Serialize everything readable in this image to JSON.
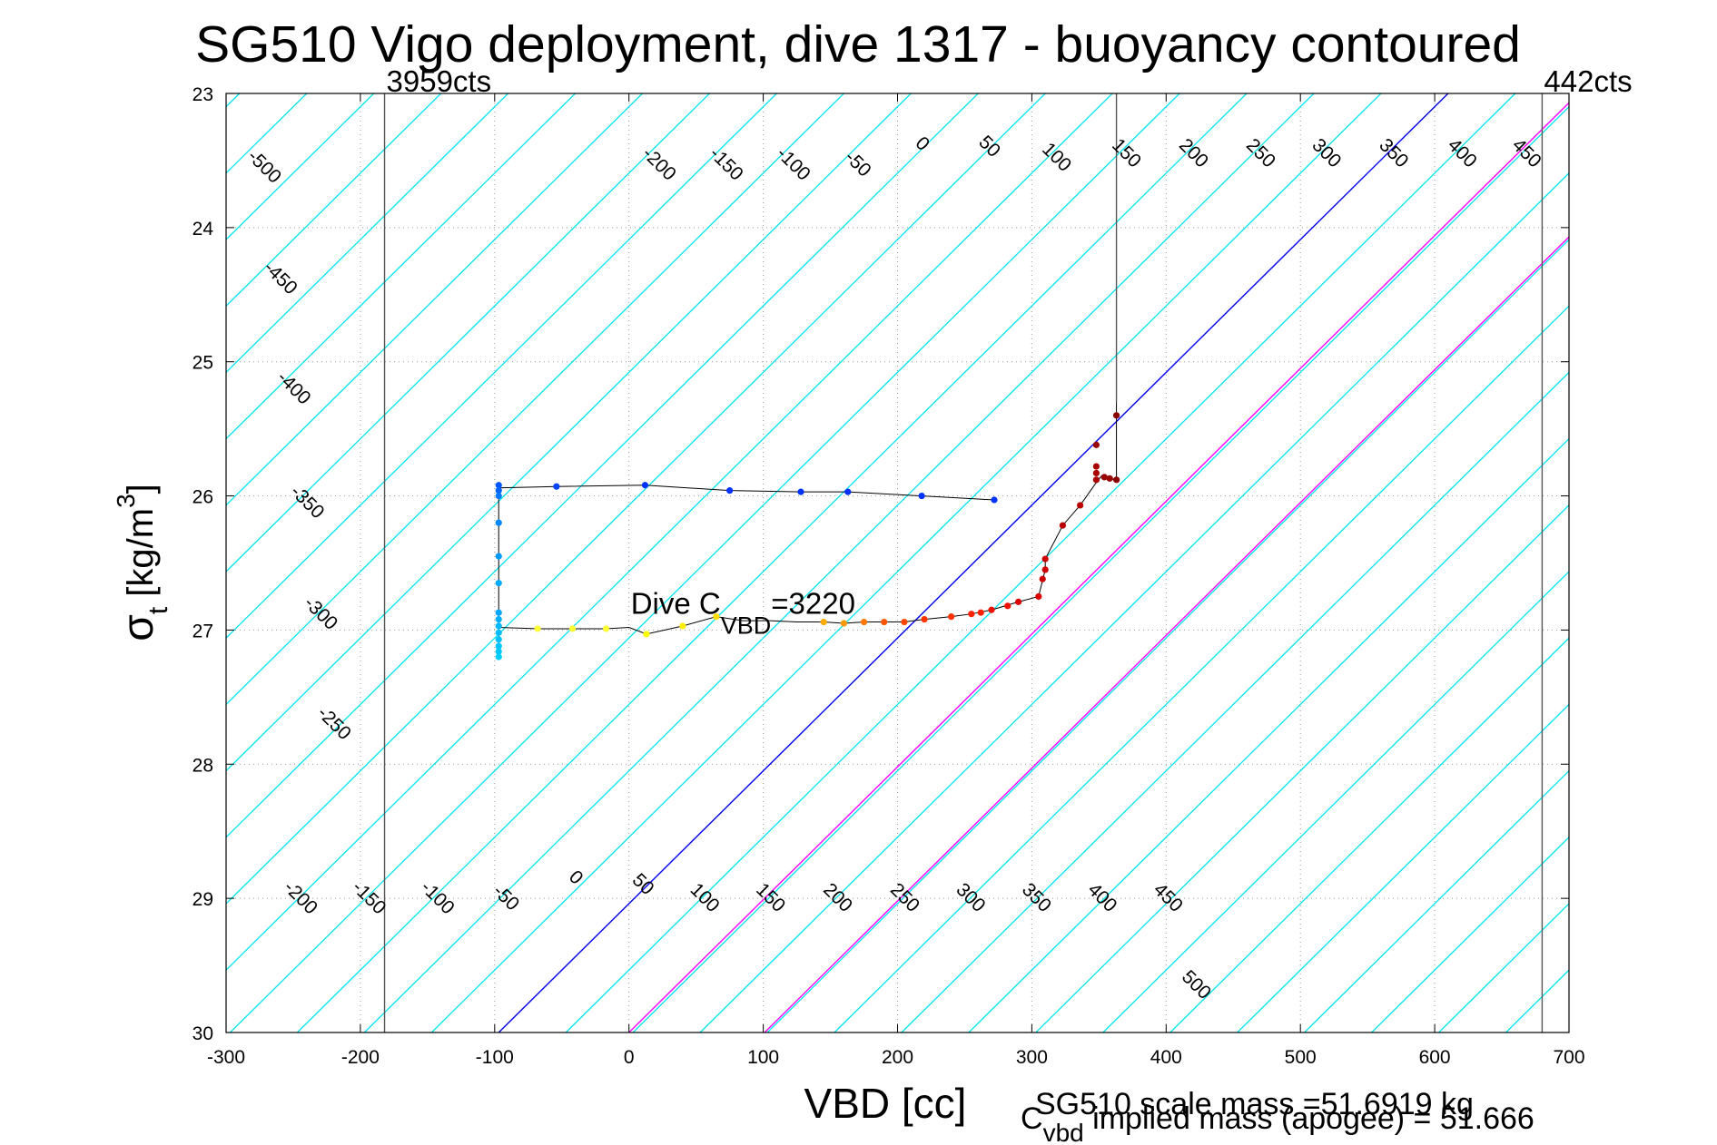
{
  "chart_data": {
    "type": "scatter",
    "title": "SG510 Vigo deployment, dive 1317 - buoyancy contoured",
    "xlabel": "VBD [cc]",
    "ylabel": {
      "symbol": "σ",
      "subscript": "t",
      "unit_open": " [kg/m",
      "superscript": "3",
      "unit_close": "]"
    },
    "xlim": [
      -300,
      700
    ],
    "ylim": [
      30,
      23
    ],
    "y_reversed": true,
    "x_ticks": [
      -300,
      -200,
      -100,
      0,
      100,
      200,
      300,
      400,
      500,
      600,
      700
    ],
    "y_ticks": [
      23,
      24,
      25,
      26,
      27,
      28,
      29,
      30
    ],
    "grid": "dotted",
    "count_limits": [
      {
        "vbd": -182,
        "label": "3959cts"
      },
      {
        "vbd": 680,
        "label": "442cts"
      }
    ],
    "apogee_line_vbd": 363,
    "contour_slope_vbd_per_sigma": 101,
    "contour_levels": [
      -500,
      -450,
      -400,
      -350,
      -300,
      -250,
      -200,
      -150,
      -100,
      -50,
      0,
      50,
      100,
      150,
      200,
      250,
      300,
      350,
      400,
      450,
      500
    ],
    "zero_contour_anchor": {
      "vbd": -97,
      "sigma": 30
    },
    "top_labels": [
      {
        "level": -500,
        "vbd": -272,
        "sigma": 23.55
      },
      {
        "level": -450,
        "vbd": -260,
        "sigma": 24.38
      },
      {
        "level": -400,
        "vbd": -250,
        "sigma": 25.2
      },
      {
        "level": -350,
        "vbd": -240,
        "sigma": 26.05
      },
      {
        "level": -300,
        "vbd": -230,
        "sigma": 26.88
      },
      {
        "level": -250,
        "vbd": -220,
        "sigma": 27.7
      },
      {
        "level": -200,
        "vbd": 22,
        "sigma": 23.53
      },
      {
        "level": -150,
        "vbd": 72,
        "sigma": 23.53
      },
      {
        "level": -100,
        "vbd": 122,
        "sigma": 23.53
      },
      {
        "level": -50,
        "vbd": 170,
        "sigma": 23.53
      },
      {
        "level": 0,
        "vbd": 218,
        "sigma": 23.38
      },
      {
        "level": 50,
        "vbd": 268,
        "sigma": 23.4
      },
      {
        "level": 100,
        "vbd": 318,
        "sigma": 23.48
      },
      {
        "level": 150,
        "vbd": 370,
        "sigma": 23.45
      },
      {
        "level": 200,
        "vbd": 420,
        "sigma": 23.45
      },
      {
        "level": 250,
        "vbd": 470,
        "sigma": 23.45
      },
      {
        "level": 300,
        "vbd": 519,
        "sigma": 23.45
      },
      {
        "level": 350,
        "vbd": 569,
        "sigma": 23.45
      },
      {
        "level": 400,
        "vbd": 620,
        "sigma": 23.45
      },
      {
        "level": 450,
        "vbd": 668,
        "sigma": 23.45
      }
    ],
    "bottom_labels": [
      {
        "level": -200,
        "vbd": -245,
        "sigma": 29.0
      },
      {
        "level": -150,
        "vbd": -194,
        "sigma": 29.0
      },
      {
        "level": -100,
        "vbd": -143,
        "sigma": 29.0
      },
      {
        "level": -50,
        "vbd": -92,
        "sigma": 29.0
      },
      {
        "level": 0,
        "vbd": -40,
        "sigma": 28.85
      },
      {
        "level": 50,
        "vbd": 10,
        "sigma": 28.9
      },
      {
        "level": 100,
        "vbd": 56,
        "sigma": 29.0
      },
      {
        "level": 150,
        "vbd": 105,
        "sigma": 29.0
      },
      {
        "level": 200,
        "vbd": 155,
        "sigma": 29.0
      },
      {
        "level": 250,
        "vbd": 205,
        "sigma": 29.0
      },
      {
        "level": 300,
        "vbd": 254,
        "sigma": 29.0
      },
      {
        "level": 350,
        "vbd": 303,
        "sigma": 29.0
      },
      {
        "level": 400,
        "vbd": 352,
        "sigma": 29.0
      },
      {
        "level": 450,
        "vbd": 401,
        "sigma": 29.0
      },
      {
        "level": 500,
        "vbd": 422,
        "sigma": 29.65
      }
    ],
    "annotation": {
      "text": "Dive C",
      "subscript": "VBD",
      "suffix": "=3220",
      "vbd": 0,
      "sigma": 26.85
    },
    "footer_mass": "SG510 scale mass =51.6919 kg",
    "footer_implied": {
      "symbol": "C",
      "subscript": "vbd",
      "text": " implied mass (apogee) = 51.666"
    },
    "colors": {
      "contour": "#00e5ee",
      "zero": "#0000ee",
      "magenta": "#ff00ff",
      "grey_line": "#555555",
      "path": "#000000"
    },
    "magenta_lines": [
      {
        "vbd_at_30": 0,
        "vbd_at_23": 707
      },
      {
        "vbd_at_30": 101,
        "vbd_at_23": 808
      }
    ],
    "descent_path": [
      [
        272,
        26.03
      ],
      [
        218,
        26.0
      ],
      [
        163,
        25.97
      ],
      [
        128,
        25.97
      ],
      [
        75,
        25.96
      ],
      [
        12,
        25.92
      ],
      [
        -54,
        25.93
      ],
      [
        -97,
        25.94
      ],
      [
        -97,
        26.0
      ],
      [
        -97,
        26.2
      ],
      [
        -97,
        26.5
      ],
      [
        -97,
        26.7
      ],
      [
        -97,
        26.9
      ],
      [
        -97,
        27.1
      ],
      [
        -97,
        27.2
      ]
    ],
    "ascent_path": [
      [
        -97,
        26.98
      ],
      [
        -68,
        26.99
      ],
      [
        -42,
        26.99
      ],
      [
        -17,
        26.99
      ],
      [
        0,
        26.98
      ],
      [
        13,
        27.03
      ],
      [
        40,
        26.97
      ],
      [
        65,
        26.9
      ],
      [
        85,
        26.93
      ],
      [
        105,
        26.93
      ],
      [
        125,
        26.94
      ],
      [
        145,
        26.94
      ],
      [
        160,
        26.95
      ],
      [
        175,
        26.94
      ],
      [
        190,
        26.94
      ],
      [
        205,
        26.94
      ],
      [
        220,
        26.92
      ],
      [
        240,
        26.9
      ],
      [
        255,
        26.88
      ],
      [
        270,
        26.85
      ],
      [
        290,
        26.79
      ],
      [
        305,
        26.75
      ],
      [
        310,
        26.55
      ],
      [
        310,
        26.47
      ],
      [
        323,
        26.22
      ],
      [
        336,
        26.07
      ],
      [
        348,
        25.9
      ],
      [
        352,
        25.85
      ],
      [
        358,
        25.87
      ],
      [
        363,
        25.88
      ],
      [
        363,
        25.3
      ]
    ],
    "descent_points": [
      {
        "vbd": 272,
        "sigma": 26.03,
        "color": "#0033ff"
      },
      {
        "vbd": 218,
        "sigma": 26.0,
        "color": "#0033ff"
      },
      {
        "vbd": 163,
        "sigma": 25.97,
        "color": "#0033ff"
      },
      {
        "vbd": 128,
        "sigma": 25.97,
        "color": "#0033ff"
      },
      {
        "vbd": 75,
        "sigma": 25.96,
        "color": "#0033ff"
      },
      {
        "vbd": 12,
        "sigma": 25.92,
        "color": "#0033ff"
      },
      {
        "vbd": -54,
        "sigma": 25.93,
        "color": "#0044ff"
      },
      {
        "vbd": -97,
        "sigma": 25.92,
        "color": "#0055ff"
      },
      {
        "vbd": -97,
        "sigma": 25.96,
        "color": "#0066ff"
      },
      {
        "vbd": -97,
        "sigma": 26.0,
        "color": "#0077ff"
      },
      {
        "vbd": -97,
        "sigma": 26.2,
        "color": "#0088ff"
      },
      {
        "vbd": -97,
        "sigma": 26.45,
        "color": "#0099ff"
      },
      {
        "vbd": -97,
        "sigma": 26.65,
        "color": "#00aaff"
      },
      {
        "vbd": -97,
        "sigma": 26.87,
        "color": "#00a8ff"
      },
      {
        "vbd": -97,
        "sigma": 26.92,
        "color": "#00b0ff"
      },
      {
        "vbd": -97,
        "sigma": 26.97,
        "color": "#00b8ff"
      },
      {
        "vbd": -97,
        "sigma": 27.02,
        "color": "#00bbff"
      },
      {
        "vbd": -97,
        "sigma": 27.07,
        "color": "#00c0ff"
      },
      {
        "vbd": -97,
        "sigma": 27.12,
        "color": "#00c4ff"
      },
      {
        "vbd": -97,
        "sigma": 27.16,
        "color": "#00c8ff"
      },
      {
        "vbd": -97,
        "sigma": 27.2,
        "color": "#00ccff"
      }
    ],
    "ascent_points": [
      {
        "vbd": -68,
        "sigma": 26.99,
        "color": "#ffff33"
      },
      {
        "vbd": -42,
        "sigma": 26.99,
        "color": "#ffff33"
      },
      {
        "vbd": -17,
        "sigma": 26.99,
        "color": "#ffff33"
      },
      {
        "vbd": 13,
        "sigma": 27.03,
        "color": "#ffff00"
      },
      {
        "vbd": 40,
        "sigma": 26.97,
        "color": "#ffee00"
      },
      {
        "vbd": 65,
        "sigma": 26.9,
        "color": "#ffdd00"
      },
      {
        "vbd": 145,
        "sigma": 26.94,
        "color": "#ffaa00"
      },
      {
        "vbd": 160,
        "sigma": 26.95,
        "color": "#ff9900"
      },
      {
        "vbd": 175,
        "sigma": 26.94,
        "color": "#ff7700"
      },
      {
        "vbd": 190,
        "sigma": 26.94,
        "color": "#ff5500"
      },
      {
        "vbd": 205,
        "sigma": 26.94,
        "color": "#ff4400"
      },
      {
        "vbd": 220,
        "sigma": 26.92,
        "color": "#ff3300"
      },
      {
        "vbd": 240,
        "sigma": 26.9,
        "color": "#ff3300"
      },
      {
        "vbd": 255,
        "sigma": 26.88,
        "color": "#ff2200"
      },
      {
        "vbd": 262,
        "sigma": 26.87,
        "color": "#ff2200"
      },
      {
        "vbd": 270,
        "sigma": 26.85,
        "color": "#ee1100"
      },
      {
        "vbd": 282,
        "sigma": 26.82,
        "color": "#ee1100"
      },
      {
        "vbd": 290,
        "sigma": 26.79,
        "color": "#dd0000"
      },
      {
        "vbd": 305,
        "sigma": 26.75,
        "color": "#dd0000"
      },
      {
        "vbd": 308,
        "sigma": 26.62,
        "color": "#cc0000"
      },
      {
        "vbd": 310,
        "sigma": 26.55,
        "color": "#cc0000"
      },
      {
        "vbd": 310,
        "sigma": 26.47,
        "color": "#cc0000"
      },
      {
        "vbd": 323,
        "sigma": 26.22,
        "color": "#bb0000"
      },
      {
        "vbd": 336,
        "sigma": 26.07,
        "color": "#bb0000"
      },
      {
        "vbd": 348,
        "sigma": 25.88,
        "color": "#aa0000"
      },
      {
        "vbd": 348,
        "sigma": 25.83,
        "color": "#aa0000"
      },
      {
        "vbd": 348,
        "sigma": 25.78,
        "color": "#aa0000"
      },
      {
        "vbd": 348,
        "sigma": 25.62,
        "color": "#990000"
      },
      {
        "vbd": 354,
        "sigma": 25.86,
        "color": "#990000"
      },
      {
        "vbd": 358,
        "sigma": 25.87,
        "color": "#990000"
      },
      {
        "vbd": 363,
        "sigma": 25.88,
        "color": "#880000"
      },
      {
        "vbd": 363,
        "sigma": 25.4,
        "color": "#880000"
      }
    ]
  }
}
